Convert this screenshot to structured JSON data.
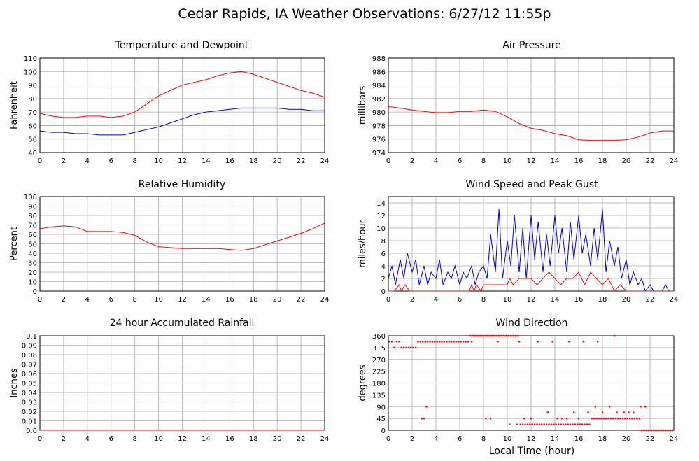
{
  "title": "Cedar Rapids, IA Weather Observations: 6/27/12 11:55p",
  "x_axis_label": "Local Time (hour)",
  "colors": {
    "red": "#ff0000",
    "blue": "#0000cc",
    "grid": "#aaaaaa"
  },
  "chart_data": [
    {
      "id": "temp",
      "type": "line",
      "title": "Temperature and Dewpoint",
      "ylabel": "Fahrenheit",
      "xlim": [
        0,
        24
      ],
      "ylim": [
        40,
        110
      ],
      "yticks": [
        40,
        50,
        60,
        70,
        80,
        90,
        100,
        110
      ],
      "xticks": [
        0,
        2,
        4,
        6,
        8,
        10,
        12,
        14,
        16,
        18,
        20,
        22,
        24
      ],
      "grid": true,
      "series": [
        {
          "color": "#ff0000",
          "x": [
            0,
            1,
            2,
            3,
            4,
            5,
            6,
            7,
            8,
            9,
            10,
            11,
            12,
            13,
            14,
            15,
            16,
            17,
            18,
            19,
            20,
            21,
            22,
            23,
            24
          ],
          "y": [
            69,
            67,
            66,
            66,
            67,
            67,
            66,
            67,
            70,
            76,
            82,
            86,
            90,
            92,
            94,
            97,
            99,
            100,
            98,
            95,
            92,
            89,
            86,
            84,
            81
          ]
        },
        {
          "color": "#0000cc",
          "x": [
            0,
            1,
            2,
            3,
            4,
            5,
            6,
            7,
            8,
            9,
            10,
            11,
            12,
            13,
            14,
            15,
            16,
            17,
            18,
            19,
            20,
            21,
            22,
            23,
            24
          ],
          "y": [
            56,
            55,
            55,
            54,
            54,
            53,
            53,
            53,
            55,
            57,
            59,
            62,
            65,
            68,
            70,
            71,
            72,
            73,
            73,
            73,
            73,
            72,
            72,
            71,
            71
          ]
        }
      ]
    },
    {
      "id": "pressure",
      "type": "line",
      "title": "Air Pressure",
      "ylabel": "millibars",
      "xlim": [
        0,
        24
      ],
      "ylim": [
        974,
        988
      ],
      "yticks": [
        974,
        976,
        978,
        980,
        982,
        984,
        986,
        988
      ],
      "xticks": [
        0,
        2,
        4,
        6,
        8,
        10,
        12,
        14,
        16,
        18,
        20,
        22,
        24
      ],
      "grid": true,
      "series": [
        {
          "color": "#ff0000",
          "x": [
            0,
            1,
            2,
            3,
            4,
            5,
            6,
            7,
            8,
            9,
            10,
            11,
            12,
            13,
            14,
            15,
            16,
            17,
            18,
            19,
            20,
            21,
            22,
            23,
            24
          ],
          "y": [
            980.8,
            980.6,
            980.3,
            980.1,
            979.9,
            979.9,
            980.1,
            980.1,
            980.3,
            980.1,
            979.3,
            978.3,
            977.6,
            977.3,
            976.8,
            976.5,
            975.9,
            975.8,
            975.8,
            975.8,
            975.9,
            976.3,
            976.9,
            977.2,
            977.2
          ]
        }
      ]
    },
    {
      "id": "humidity",
      "type": "line",
      "title": "Relative Humidity",
      "ylabel": "Percent",
      "xlim": [
        0,
        24
      ],
      "ylim": [
        0,
        100
      ],
      "yticks": [
        0,
        10,
        20,
        30,
        40,
        50,
        60,
        70,
        80,
        90,
        100
      ],
      "xticks": [
        0,
        2,
        4,
        6,
        8,
        10,
        12,
        14,
        16,
        18,
        20,
        22,
        24
      ],
      "grid": true,
      "series": [
        {
          "color": "#ff0000",
          "x": [
            0,
            1,
            2,
            3,
            4,
            5,
            6,
            7,
            8,
            9,
            10,
            11,
            12,
            13,
            14,
            15,
            16,
            17,
            18,
            19,
            20,
            21,
            22,
            23,
            24
          ],
          "y": [
            66,
            68,
            69,
            68,
            63,
            63,
            63,
            62,
            59,
            52,
            47,
            46,
            45,
            45,
            45,
            45,
            44,
            43,
            45,
            49,
            53,
            57,
            61,
            66,
            72
          ]
        }
      ]
    },
    {
      "id": "wind",
      "type": "line",
      "title": "Wind Speed and Peak Gust",
      "ylabel": "miles/hour",
      "xlim": [
        0,
        24
      ],
      "ylim": [
        0,
        15
      ],
      "yticks": [
        0,
        2,
        4,
        6,
        8,
        10,
        12,
        14
      ],
      "xticks": [
        0,
        2,
        4,
        6,
        8,
        10,
        12,
        14,
        16,
        18,
        20,
        22,
        24
      ],
      "grid": true,
      "series": [
        {
          "color": "#0000cc",
          "x": [
            0,
            0.3,
            0.6,
            1,
            1.3,
            1.6,
            2,
            2.3,
            2.6,
            3,
            3.3,
            3.6,
            4,
            4.3,
            4.6,
            5,
            5.3,
            5.6,
            6,
            6.3,
            6.6,
            7,
            7.3,
            7.6,
            8,
            8.3,
            8.6,
            9,
            9.3,
            9.6,
            10,
            10.3,
            10.6,
            11,
            11.3,
            11.6,
            12,
            12.3,
            12.6,
            13,
            13.3,
            13.6,
            14,
            14.3,
            14.6,
            15,
            15.3,
            15.6,
            16,
            16.3,
            16.6,
            17,
            17.3,
            17.6,
            18,
            18.3,
            18.6,
            19,
            19.3,
            19.6,
            20,
            20.3,
            20.6,
            21,
            21.3,
            21.6,
            22,
            22.3,
            22.6,
            23,
            23.3,
            23.6,
            24
          ],
          "y": [
            2,
            4,
            1,
            5,
            2,
            6,
            3,
            5,
            1,
            4,
            1,
            3,
            2,
            5,
            1,
            3,
            2,
            4,
            1,
            3,
            2,
            4,
            1,
            3,
            4,
            2,
            9,
            3,
            13,
            2,
            8,
            4,
            12,
            3,
            10,
            2,
            12,
            5,
            11,
            3,
            9,
            4,
            12,
            6,
            10,
            3,
            11,
            5,
            12,
            6,
            9,
            4,
            10,
            5,
            13,
            3,
            8,
            4,
            7,
            2,
            5,
            1,
            3,
            1,
            2,
            0,
            1,
            0,
            0,
            0,
            1,
            0,
            0
          ]
        },
        {
          "color": "#ff0000",
          "x": [
            0,
            0.5,
            0.9,
            1.1,
            1.4,
            1.8,
            2,
            3,
            3.5,
            4,
            5,
            6,
            6.8,
            7,
            7.2,
            7.4,
            7.8,
            8,
            9,
            10,
            10.2,
            10.5,
            11,
            12,
            12.5,
            13,
            13.5,
            14,
            14.5,
            15,
            15.5,
            16,
            16.5,
            17,
            17.5,
            18,
            18.5,
            19,
            19.5,
            20,
            20.5,
            21,
            22,
            23,
            24
          ],
          "y": [
            0,
            0,
            1,
            0,
            1,
            0,
            0,
            0,
            0,
            0,
            0,
            0,
            0,
            1,
            0,
            1,
            0,
            1,
            1,
            1,
            2,
            1,
            2,
            2,
            1,
            2,
            3,
            2,
            1,
            2,
            2,
            3,
            1,
            3,
            2,
            1,
            2,
            0,
            1,
            0,
            0,
            0,
            0,
            0,
            0
          ]
        }
      ]
    },
    {
      "id": "rain",
      "type": "line",
      "title": "24 hour Accumulated Rainfall",
      "ylabel": "Inches",
      "xlim": [
        0,
        24
      ],
      "ylim": [
        0,
        0.1
      ],
      "yticks": [
        0.0,
        0.01,
        0.02,
        0.03,
        0.04,
        0.05,
        0.06,
        0.07,
        0.08,
        0.09,
        0.1
      ],
      "ytick_labels": [
        "0.0",
        "0.01",
        "0.02",
        "0.03",
        "0.04",
        "0.05",
        "0.06",
        "0.07",
        "0.08",
        "0.09",
        "0.1"
      ],
      "xticks": [
        0,
        2,
        4,
        6,
        8,
        10,
        12,
        14,
        16,
        18,
        20,
        22,
        24
      ],
      "grid": true,
      "series": [
        {
          "color": "#ff0000",
          "x": [
            0,
            24
          ],
          "y": [
            0,
            0
          ]
        }
      ]
    },
    {
      "id": "direction",
      "type": "scatter",
      "title": "Wind Direction",
      "ylabel": "degrees",
      "xlim": [
        0,
        24
      ],
      "ylim": [
        0,
        360
      ],
      "yticks": [
        0,
        45,
        90,
        135,
        180,
        225,
        270,
        315,
        360
      ],
      "xticks": [
        0,
        2,
        4,
        6,
        8,
        10,
        12,
        14,
        16,
        18,
        20,
        22,
        24
      ],
      "grid": true,
      "series": [
        {
          "color": "#ff0000",
          "x": [
            0.1,
            0.3,
            0.5,
            0.7,
            0.9,
            1.1,
            1.3,
            1.5,
            1.7,
            1.9,
            2.1,
            2.3,
            2.5,
            2.7,
            2.9,
            3.1,
            3.3,
            3.5,
            3.7,
            3.9,
            4.1,
            4.3,
            4.5,
            4.7,
            4.9,
            5.1,
            5.3,
            5.5,
            5.7,
            5.9,
            6.1,
            6.3,
            6.5,
            6.7,
            6.9,
            7.1,
            7.3,
            7.5,
            7.7,
            7.9,
            8.1,
            8.3,
            8.5,
            8.7,
            8.9,
            9.1,
            9.3,
            9.5,
            9.7,
            9.9,
            10.1,
            10.3,
            10.5,
            10.7,
            10.9,
            11.1,
            11.3,
            11.5,
            11.7,
            11.9,
            12.1,
            12.3,
            12.5,
            12.7,
            12.9,
            13.1,
            13.3,
            13.5,
            13.7,
            13.9,
            14.1,
            14.3,
            14.5,
            14.7,
            14.9,
            15.1,
            15.3,
            15.5,
            15.7,
            15.9,
            16.1,
            16.3,
            16.5,
            16.7,
            16.9,
            17.1,
            17.3,
            17.5,
            17.7,
            17.9,
            18.1,
            18.3,
            18.5,
            18.7,
            18.9,
            19.1,
            19.3,
            19.5,
            19.7,
            19.9,
            20.1,
            20.3,
            20.5,
            20.7,
            20.9,
            21.1,
            21.3,
            21.5,
            21.7,
            21.9,
            22.1,
            22.3,
            22.5,
            22.7,
            22.9,
            23.1,
            23.3,
            23.5,
            23.7,
            23.9,
            2.8,
            3.0,
            3.2,
            8.2,
            8.6,
            10.2,
            10.8,
            11.4,
            12.0,
            13.4,
            14.2,
            14.6,
            15.0,
            15.6,
            16.0,
            16.8,
            17.4,
            18.0,
            18.6,
            19.2,
            19.8,
            20.2,
            20.6,
            21.2,
            21.6,
            7.0,
            9.2,
            11.0,
            12.6,
            13.8,
            15.2,
            16.4,
            17.6,
            19.0
          ],
          "y": [
            338,
            338,
            315,
            338,
            338,
            315,
            315,
            315,
            315,
            315,
            315,
            315,
            338,
            338,
            338,
            338,
            338,
            338,
            338,
            338,
            338,
            338,
            338,
            338,
            338,
            338,
            338,
            338,
            338,
            338,
            338,
            338,
            338,
            338,
            360,
            360,
            360,
            360,
            360,
            360,
            360,
            360,
            360,
            360,
            360,
            360,
            360,
            360,
            360,
            360,
            360,
            360,
            360,
            360,
            360,
            22,
            22,
            22,
            22,
            22,
            22,
            22,
            22,
            22,
            22,
            22,
            22,
            22,
            22,
            22,
            22,
            22,
            22,
            22,
            22,
            22,
            22,
            22,
            22,
            22,
            22,
            22,
            22,
            22,
            22,
            45,
            45,
            45,
            45,
            45,
            45,
            45,
            45,
            45,
            45,
            45,
            45,
            45,
            45,
            45,
            45,
            45,
            45,
            45,
            45,
            45,
            0,
            0,
            0,
            0,
            0,
            0,
            0,
            0,
            0,
            0,
            0,
            0,
            0,
            0,
            45,
            45,
            90,
            45,
            45,
            22,
            22,
            45,
            45,
            68,
            45,
            45,
            45,
            68,
            45,
            68,
            90,
            68,
            90,
            68,
            68,
            68,
            68,
            90,
            90,
            338,
            338,
            338,
            338,
            338,
            338,
            338,
            338,
            360
          ]
        }
      ]
    }
  ]
}
